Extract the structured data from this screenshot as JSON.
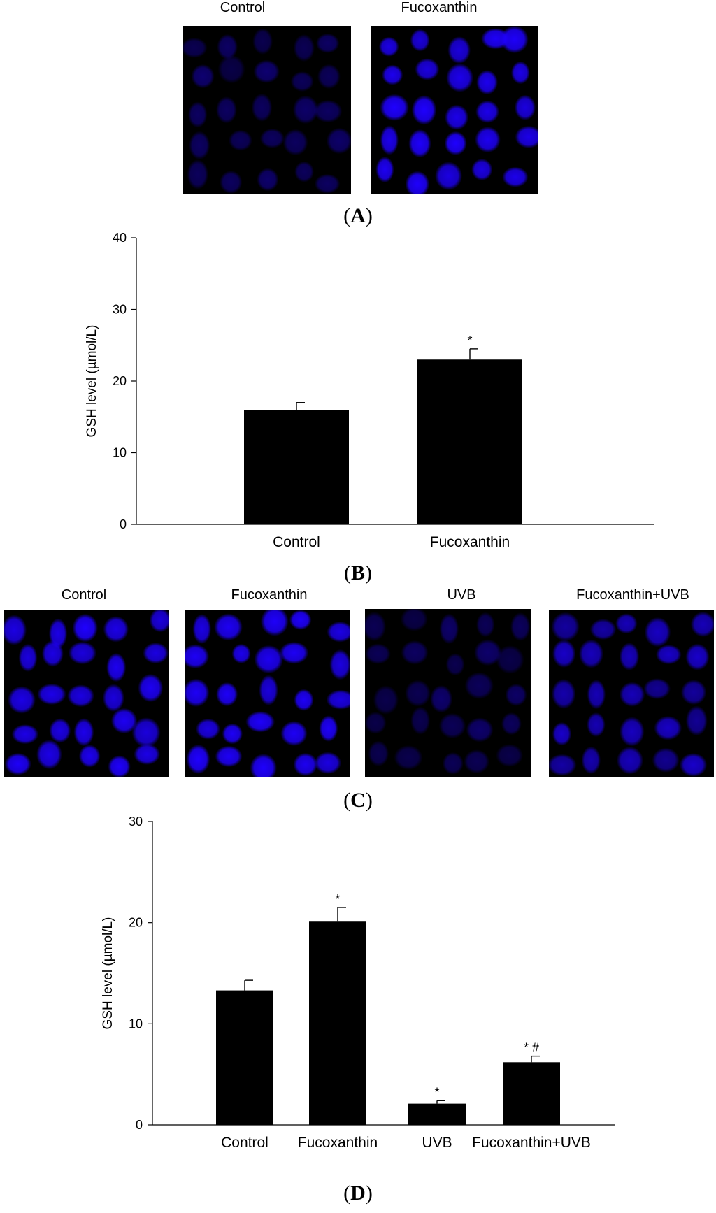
{
  "panel_a": {
    "letter": "A",
    "labels": [
      "Control",
      "Fucoxanthin"
    ],
    "intensity": [
      "dim",
      "bright"
    ]
  },
  "panel_b": {
    "letter": "B"
  },
  "panel_c": {
    "letter": "C",
    "labels": [
      "Control",
      "Fucoxanthin",
      "UVB",
      "Fucoxanthin+UVB"
    ],
    "intensity": [
      "bright",
      "bright",
      "dim",
      "moderate"
    ]
  },
  "panel_d": {
    "letter": "D"
  },
  "colors": {
    "stain": "#1f00ff",
    "bar": "#000000",
    "background": "#ffffff"
  },
  "chart_data": [
    {
      "type": "bar",
      "panel": "B",
      "categories": [
        "Control",
        "Fucoxanthin"
      ],
      "values": [
        16,
        23
      ],
      "errors": [
        1,
        1.5
      ],
      "annotations": [
        "",
        "*"
      ],
      "ylabel": "GSH level (µmol/L)",
      "xlabel": "",
      "ylim": [
        0,
        40
      ],
      "yticks": [
        0,
        10,
        20,
        30,
        40
      ],
      "grid": false
    },
    {
      "type": "bar",
      "panel": "D",
      "categories": [
        "Control",
        "Fucoxanthin",
        "UVB",
        "Fucoxanthin+UVB"
      ],
      "values": [
        13.3,
        20.1,
        2.1,
        6.2
      ],
      "errors": [
        1,
        1.4,
        0.3,
        0.6
      ],
      "annotations": [
        "",
        "*",
        "*",
        "* #"
      ],
      "ylabel": "GSH level (µmol/L)",
      "xlabel": "",
      "ylim": [
        0,
        30
      ],
      "yticks": [
        0,
        10,
        20,
        30
      ],
      "grid": false
    }
  ]
}
